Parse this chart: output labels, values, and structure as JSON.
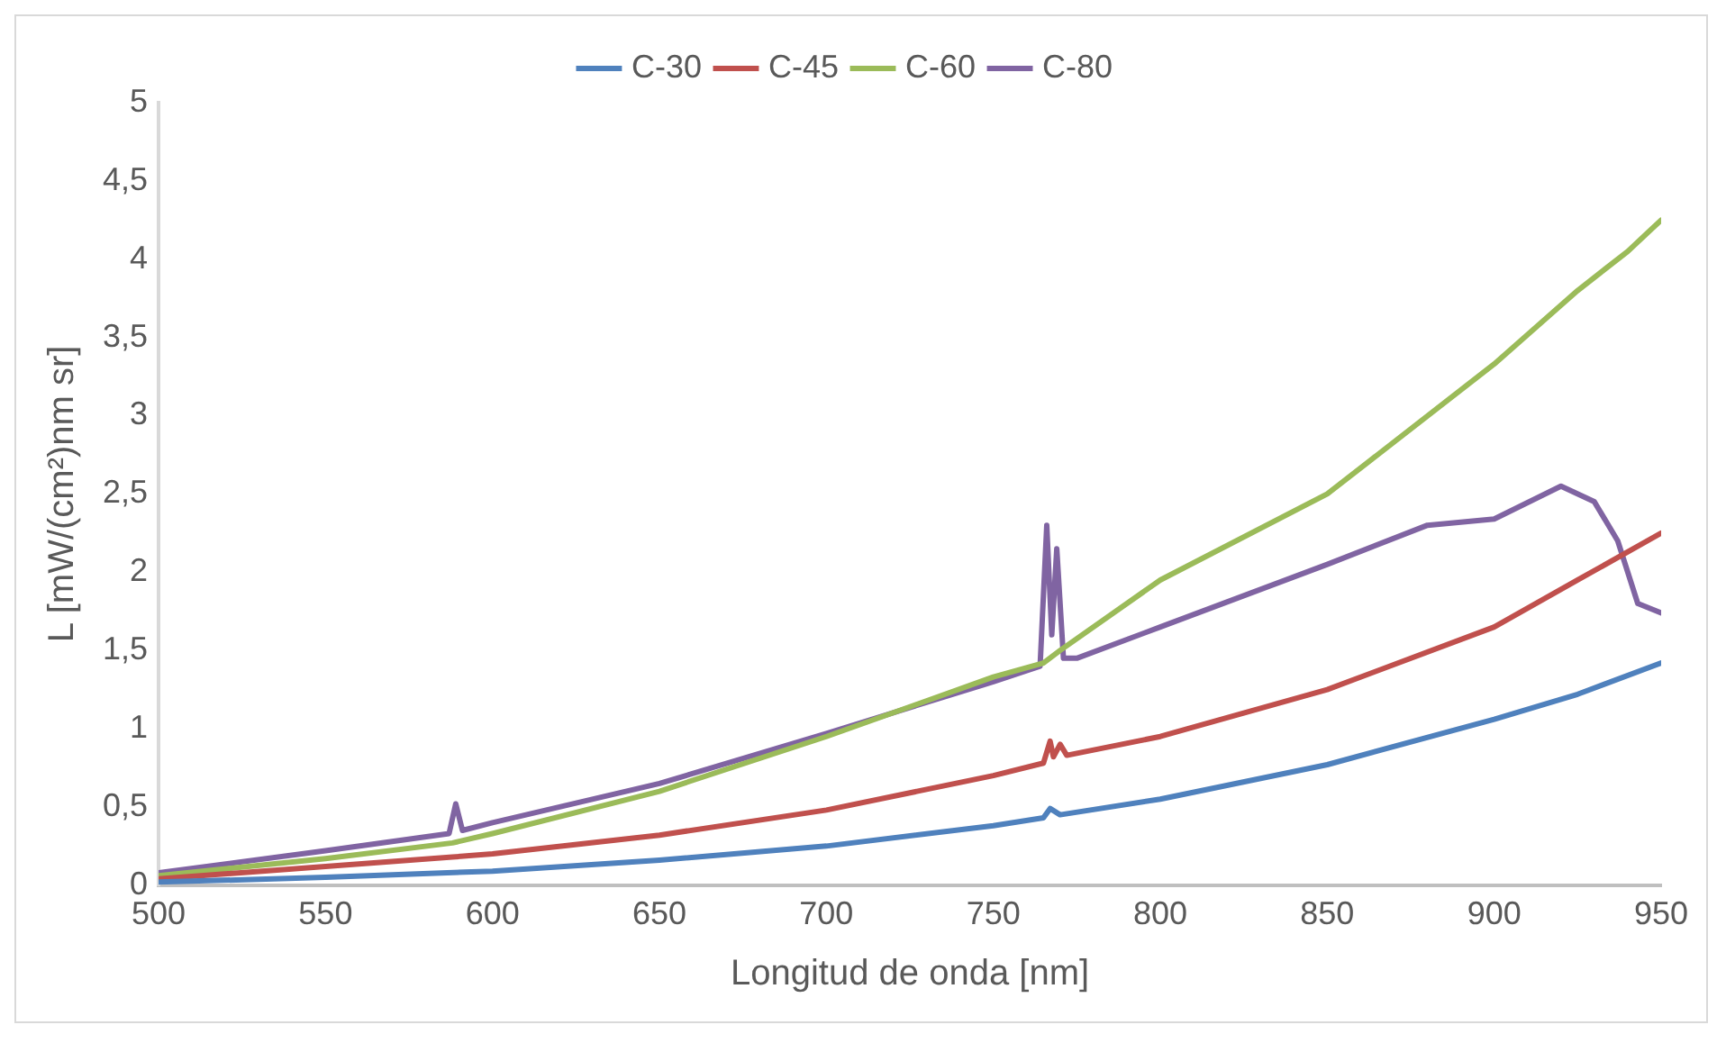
{
  "chart_data": {
    "type": "line",
    "xlabel": "Longitud de onda [nm]",
    "ylabel": "L [mW/(cm²)nm sr]",
    "xlim": [
      500,
      950
    ],
    "xticks": [
      500,
      550,
      600,
      650,
      700,
      750,
      800,
      850,
      900,
      950
    ],
    "ylim": [
      0,
      5
    ],
    "yticks": [
      0,
      {
        "value": 0.5,
        "label": "0,5"
      },
      1,
      {
        "value": 1.5,
        "label": "1,5"
      },
      2,
      {
        "value": 2.5,
        "label": "2,5"
      },
      3,
      {
        "value": 3.5,
        "label": "3,5"
      },
      4,
      {
        "value": 4.5,
        "label": "4,5"
      },
      5
    ],
    "grid": false,
    "legend": "top",
    "marker": "none",
    "line_style": "solid",
    "series": [
      {
        "name": "C-30",
        "color": "#4f81bd",
        "x": [
          500,
          550,
          600,
          650,
          700,
          750,
          765,
          767,
          770,
          800,
          850,
          900,
          925,
          950
        ],
        "values": [
          0.02,
          0.05,
          0.09,
          0.16,
          0.25,
          0.38,
          0.43,
          0.49,
          0.45,
          0.55,
          0.77,
          1.06,
          1.22,
          1.42
        ]
      },
      {
        "name": "C-45",
        "color": "#c0504d",
        "x": [
          500,
          550,
          588,
          600,
          650,
          700,
          750,
          765,
          767,
          768,
          770,
          772,
          800,
          850,
          900,
          925,
          950
        ],
        "values": [
          0.04,
          0.12,
          0.18,
          0.2,
          0.32,
          0.48,
          0.7,
          0.78,
          0.92,
          0.82,
          0.9,
          0.83,
          0.95,
          1.25,
          1.65,
          1.95,
          2.25
        ]
      },
      {
        "name": "C-60",
        "color": "#9bbb59",
        "x": [
          500,
          550,
          588,
          600,
          650,
          700,
          750,
          765,
          770,
          800,
          850,
          900,
          925,
          940,
          950
        ],
        "values": [
          0.06,
          0.17,
          0.27,
          0.33,
          0.6,
          0.95,
          1.33,
          1.42,
          1.5,
          1.95,
          2.5,
          3.33,
          3.8,
          4.05,
          4.25
        ]
      },
      {
        "name": "C-80",
        "color": "#8064a2",
        "x": [
          500,
          550,
          587,
          589,
          591,
          600,
          650,
          700,
          750,
          764,
          766,
          767.5,
          769,
          771,
          775,
          800,
          850,
          880,
          900,
          920,
          930,
          937,
          943,
          950
        ],
        "values": [
          0.08,
          0.22,
          0.33,
          0.52,
          0.35,
          0.4,
          0.65,
          0.97,
          1.3,
          1.4,
          2.3,
          1.6,
          2.15,
          1.45,
          1.45,
          1.65,
          2.05,
          2.3,
          2.34,
          2.55,
          2.45,
          2.2,
          1.8,
          1.74
        ]
      }
    ]
  }
}
